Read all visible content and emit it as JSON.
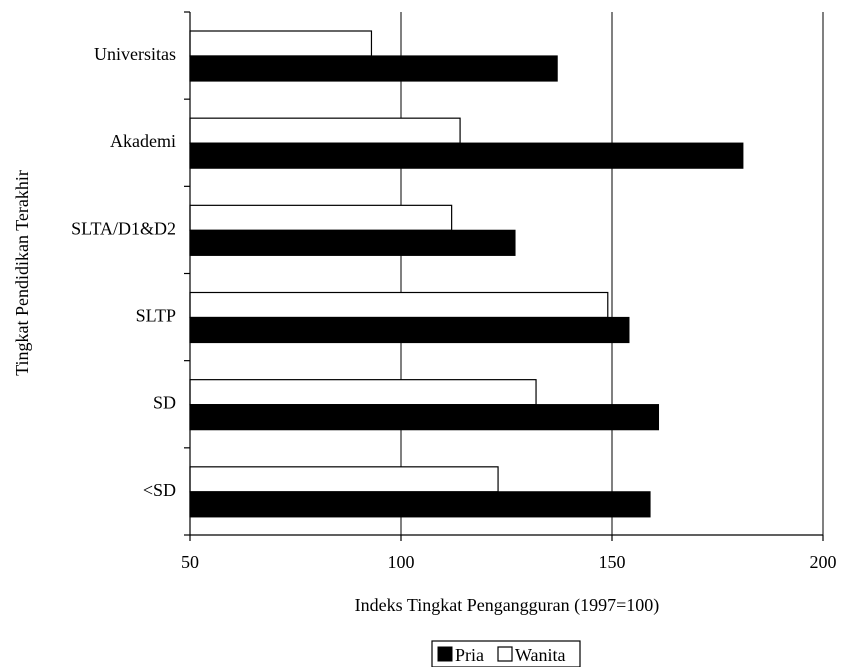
{
  "chart_data": {
    "type": "bar",
    "orientation": "horizontal",
    "categories": [
      "Universitas",
      "Akademi",
      "SLTA/D1&D2",
      "SLTP",
      "SD",
      "<SD"
    ],
    "series": [
      {
        "name": "Wanita",
        "values": [
          93,
          114,
          112,
          149,
          132,
          123
        ],
        "color": "#ffffff"
      },
      {
        "name": "Pria",
        "values": [
          137,
          181,
          127,
          154,
          161,
          159
        ],
        "color": "#000000"
      }
    ],
    "xlabel": "Indeks Tingkat Pengangguran (1997=100)",
    "ylabel": "Tingkat Pendidikan Terakhir",
    "xlim": [
      50,
      200
    ],
    "xticks": [
      50,
      100,
      150,
      200
    ],
    "xtick_labels": [
      "50",
      "100",
      "150",
      "200"
    ],
    "grid": "vertical",
    "legend": {
      "position": "bottom-center",
      "items": [
        "Pria",
        "Wanita"
      ]
    }
  }
}
